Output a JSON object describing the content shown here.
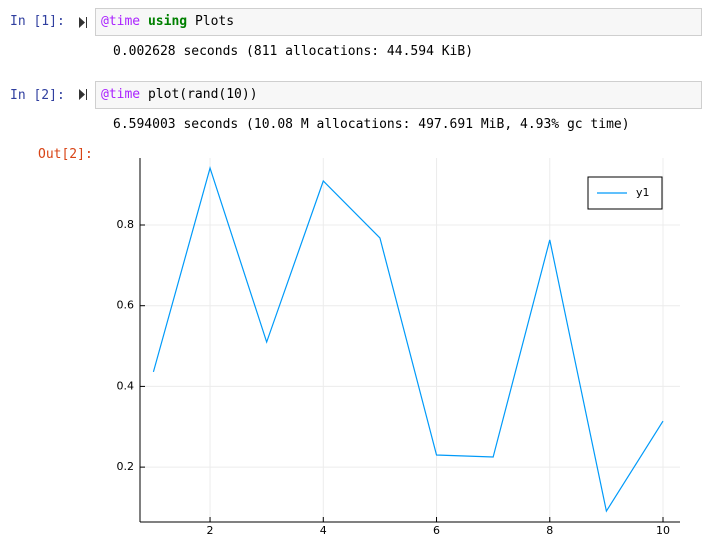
{
  "cells": [
    {
      "prompt": "In [1]:",
      "code": [
        "@time",
        "using",
        "Plots"
      ],
      "output": "0.002628 seconds (811 allocations: 44.594 KiB)"
    },
    {
      "prompt": "In [2]:",
      "code": [
        "@time",
        "plot(rand(10))"
      ],
      "output": "6.594003 seconds (10.08 M allocations: 497.691 MiB, 4.93% gc time)",
      "out_prompt": "Out[2]:"
    }
  ],
  "chart_data": {
    "type": "line",
    "x": [
      1,
      2,
      3,
      4,
      5,
      6,
      7,
      8,
      9,
      10
    ],
    "series": [
      {
        "name": "y1",
        "color": "#009af9",
        "values": [
          0.436,
          0.941,
          0.51,
          0.909,
          0.768,
          0.23,
          0.225,
          0.763,
          0.091,
          0.314
        ]
      }
    ],
    "xlim": [
      0.763,
      10.3
    ],
    "xticks": [
      2,
      4,
      6,
      8,
      10
    ],
    "ylim": [
      0.064,
      0.966
    ],
    "yticks": [
      0.2,
      0.4,
      0.6,
      0.8
    ],
    "grid": true,
    "legend": "top-right"
  }
}
